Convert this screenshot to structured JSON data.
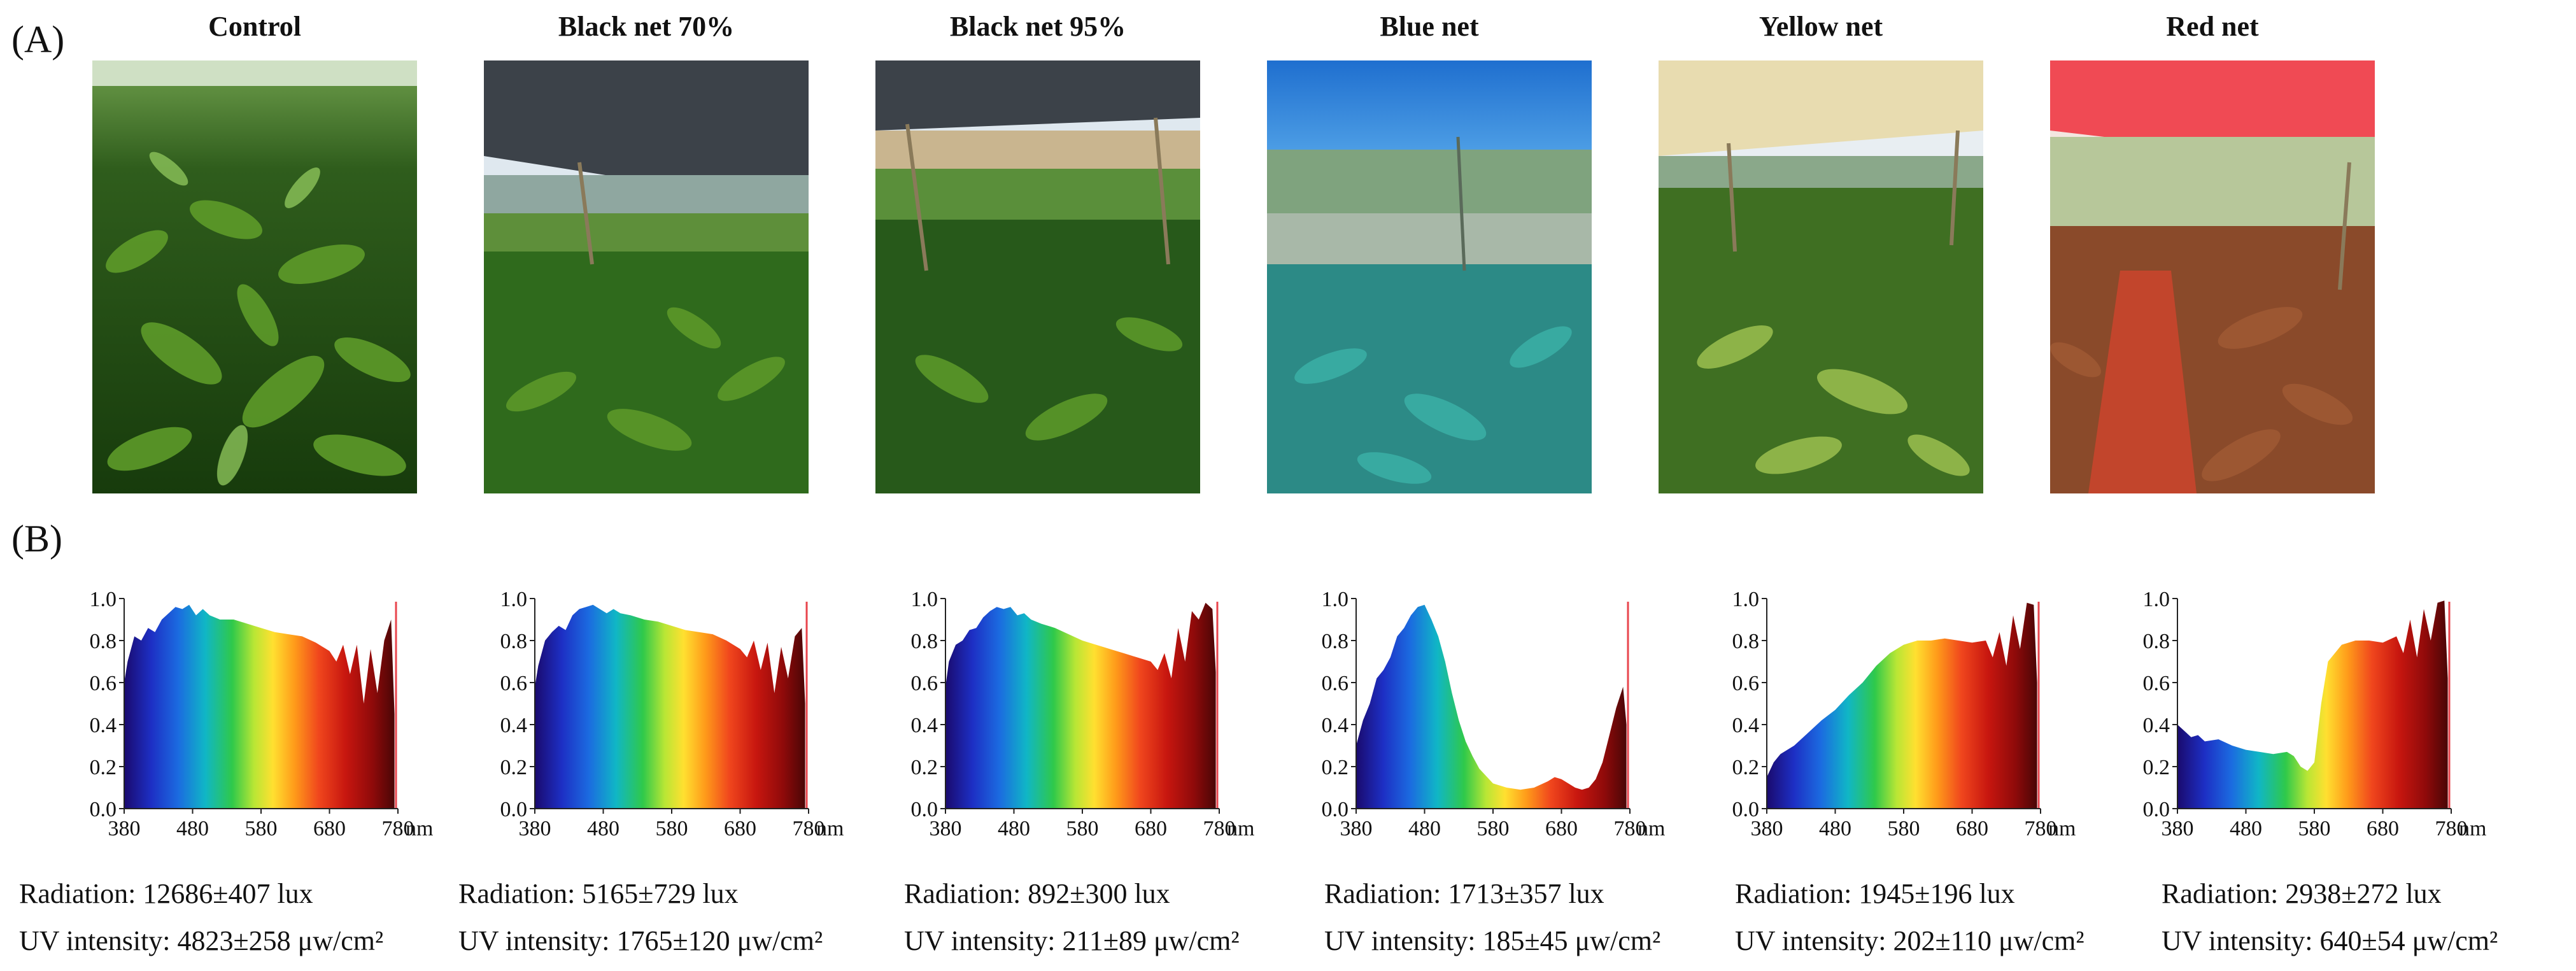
{
  "panels": {
    "a": "(A)",
    "b": "(B)"
  },
  "nets": [
    {
      "title": "Control",
      "radiation": "Radiation: 12686±407 lux",
      "uv": "UV intensity: 4823±258 μw/cm²"
    },
    {
      "title": "Black net 70%",
      "radiation": "Radiation: 5165±729 lux",
      "uv": "UV intensity: 1765±120 μw/cm²"
    },
    {
      "title": "Black net 95%",
      "radiation": "Radiation: 892±300 lux",
      "uv": "UV intensity: 211±89 μw/cm²"
    },
    {
      "title": "Blue net",
      "radiation": "Radiation: 1713±357 lux",
      "uv": "UV intensity: 185±45 μw/cm²"
    },
    {
      "title": "Yellow net",
      "radiation": "Radiation: 1945±196 lux",
      "uv": "UV intensity: 202±110 μw/cm²"
    },
    {
      "title": "Red net",
      "radiation": "Radiation: 2938±272 lux",
      "uv": "UV intensity: 640±54 μw/cm²"
    }
  ],
  "colors": {
    "sky": "#dfe8ef",
    "leaf_dark": "#1f4d12",
    "leaf_light": "#5e9b2a",
    "black_net": "#3c4249",
    "blue_net": "#1f6fcf",
    "yellow_net": "#e8dcb0",
    "red_net": "#f04a54",
    "red_soil": "#c2452c",
    "marker": "#e8454d"
  },
  "chart_data": [
    {
      "type": "area",
      "title": "Control",
      "xlabel": "nm",
      "ylabel": "",
      "xlim": [
        380,
        780
      ],
      "ylim": [
        0,
        1
      ],
      "xticks": [
        "380",
        "480",
        "580",
        "680",
        "780"
      ],
      "yticks": [
        "0.0",
        "0.2",
        "0.4",
        "0.6",
        "0.8",
        "1.0"
      ],
      "x": [
        380,
        385,
        395,
        405,
        415,
        425,
        435,
        445,
        455,
        465,
        475,
        485,
        495,
        505,
        520,
        540,
        560,
        580,
        600,
        620,
        640,
        660,
        680,
        690,
        700,
        710,
        720,
        730,
        740,
        750,
        760,
        770,
        775
      ],
      "y": [
        0.6,
        0.7,
        0.82,
        0.8,
        0.86,
        0.84,
        0.9,
        0.93,
        0.96,
        0.95,
        0.97,
        0.92,
        0.95,
        0.92,
        0.9,
        0.9,
        0.88,
        0.86,
        0.84,
        0.83,
        0.82,
        0.79,
        0.75,
        0.7,
        0.78,
        0.64,
        0.78,
        0.5,
        0.76,
        0.55,
        0.8,
        0.9,
        0.45
      ]
    },
    {
      "type": "area",
      "title": "Black net 70%",
      "xlabel": "nm",
      "ylabel": "",
      "xlim": [
        380,
        780
      ],
      "ylim": [
        0,
        1
      ],
      "xticks": [
        "380",
        "480",
        "580",
        "680",
        "780"
      ],
      "yticks": [
        "0.0",
        "0.2",
        "0.4",
        "0.6",
        "0.8",
        "1.0"
      ],
      "x": [
        380,
        385,
        395,
        405,
        415,
        425,
        435,
        445,
        455,
        465,
        475,
        485,
        495,
        505,
        520,
        540,
        560,
        580,
        600,
        620,
        640,
        660,
        680,
        690,
        700,
        710,
        720,
        730,
        740,
        750,
        760,
        770,
        775
      ],
      "y": [
        0.58,
        0.68,
        0.8,
        0.84,
        0.87,
        0.85,
        0.92,
        0.95,
        0.96,
        0.97,
        0.95,
        0.93,
        0.95,
        0.93,
        0.92,
        0.9,
        0.89,
        0.87,
        0.85,
        0.84,
        0.83,
        0.8,
        0.76,
        0.72,
        0.8,
        0.66,
        0.79,
        0.55,
        0.77,
        0.62,
        0.82,
        0.86,
        0.5
      ]
    },
    {
      "type": "area",
      "title": "Black net 95%",
      "xlabel": "nm",
      "ylabel": "",
      "xlim": [
        380,
        780
      ],
      "ylim": [
        0,
        1
      ],
      "xticks": [
        "380",
        "480",
        "580",
        "680",
        "780"
      ],
      "yticks": [
        "0.0",
        "0.2",
        "0.4",
        "0.6",
        "0.8",
        "1.0"
      ],
      "x": [
        380,
        385,
        395,
        405,
        415,
        425,
        435,
        445,
        455,
        465,
        475,
        485,
        495,
        505,
        520,
        540,
        560,
        580,
        600,
        620,
        640,
        660,
        680,
        690,
        700,
        710,
        720,
        730,
        740,
        750,
        760,
        770,
        775
      ],
      "y": [
        0.58,
        0.7,
        0.78,
        0.8,
        0.85,
        0.86,
        0.91,
        0.94,
        0.96,
        0.95,
        0.96,
        0.92,
        0.93,
        0.9,
        0.88,
        0.86,
        0.83,
        0.8,
        0.78,
        0.76,
        0.74,
        0.72,
        0.7,
        0.66,
        0.74,
        0.62,
        0.86,
        0.7,
        0.94,
        0.9,
        0.98,
        0.95,
        0.65
      ]
    },
    {
      "type": "area",
      "title": "Blue net",
      "xlabel": "nm",
      "ylabel": "",
      "xlim": [
        380,
        780
      ],
      "ylim": [
        0,
        1
      ],
      "xticks": [
        "380",
        "480",
        "580",
        "680",
        "780"
      ],
      "yticks": [
        "0.0",
        "0.2",
        "0.4",
        "0.6",
        "0.8",
        "1.0"
      ],
      "x": [
        380,
        390,
        400,
        410,
        420,
        430,
        440,
        450,
        460,
        470,
        480,
        490,
        500,
        510,
        520,
        530,
        540,
        550,
        560,
        580,
        600,
        620,
        640,
        660,
        670,
        680,
        690,
        700,
        710,
        720,
        730,
        740,
        750,
        760,
        770,
        775
      ],
      "y": [
        0.3,
        0.42,
        0.5,
        0.62,
        0.66,
        0.72,
        0.82,
        0.86,
        0.92,
        0.96,
        0.97,
        0.9,
        0.82,
        0.7,
        0.55,
        0.42,
        0.32,
        0.25,
        0.19,
        0.12,
        0.1,
        0.09,
        0.1,
        0.13,
        0.15,
        0.14,
        0.12,
        0.1,
        0.09,
        0.1,
        0.14,
        0.22,
        0.35,
        0.48,
        0.58,
        0.4
      ]
    },
    {
      "type": "area",
      "title": "Yellow net",
      "xlabel": "nm",
      "ylabel": "",
      "xlim": [
        380,
        780
      ],
      "ylim": [
        0,
        1
      ],
      "xticks": [
        "380",
        "480",
        "580",
        "680",
        "780"
      ],
      "yticks": [
        "0.0",
        "0.2",
        "0.4",
        "0.6",
        "0.8",
        "1.0"
      ],
      "x": [
        380,
        390,
        400,
        420,
        440,
        460,
        480,
        500,
        520,
        540,
        560,
        580,
        600,
        620,
        640,
        660,
        680,
        700,
        710,
        720,
        730,
        740,
        750,
        760,
        770,
        775
      ],
      "y": [
        0.15,
        0.22,
        0.26,
        0.3,
        0.36,
        0.42,
        0.47,
        0.54,
        0.6,
        0.68,
        0.74,
        0.78,
        0.8,
        0.8,
        0.81,
        0.8,
        0.79,
        0.8,
        0.72,
        0.84,
        0.68,
        0.92,
        0.76,
        0.98,
        0.97,
        0.6
      ]
    },
    {
      "type": "area",
      "title": "Red net",
      "xlabel": "nm",
      "ylabel": "",
      "xlim": [
        380,
        780
      ],
      "ylim": [
        0,
        1
      ],
      "xticks": [
        "380",
        "480",
        "580",
        "680",
        "780"
      ],
      "yticks": [
        "0.0",
        "0.2",
        "0.4",
        "0.6",
        "0.8",
        "1.0"
      ],
      "x": [
        380,
        390,
        400,
        410,
        420,
        440,
        460,
        480,
        500,
        520,
        540,
        550,
        560,
        570,
        580,
        590,
        600,
        620,
        640,
        660,
        680,
        700,
        710,
        720,
        730,
        740,
        750,
        760,
        770,
        775
      ],
      "y": [
        0.4,
        0.37,
        0.34,
        0.35,
        0.32,
        0.33,
        0.3,
        0.28,
        0.27,
        0.26,
        0.27,
        0.25,
        0.2,
        0.18,
        0.22,
        0.5,
        0.7,
        0.78,
        0.8,
        0.8,
        0.79,
        0.82,
        0.74,
        0.9,
        0.72,
        0.95,
        0.8,
        0.98,
        0.99,
        0.62
      ]
    }
  ]
}
